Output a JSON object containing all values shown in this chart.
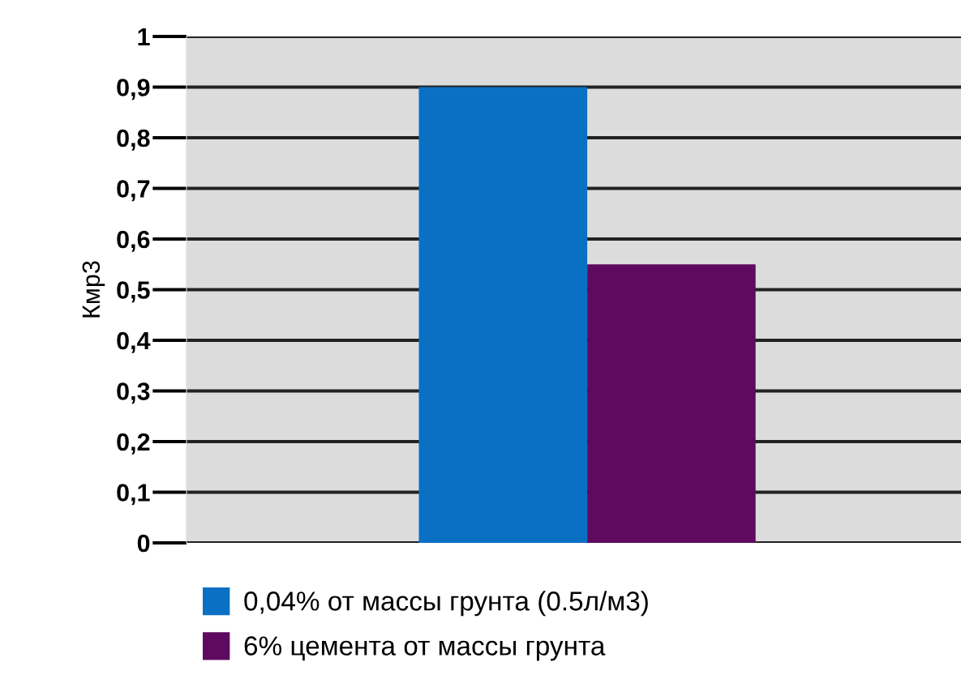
{
  "chart_data": {
    "type": "bar",
    "ylabel": "Кмр3",
    "categories": [
      null
    ],
    "series": [
      {
        "name": "0,04% от массы грунта (0.5л/м3)",
        "color": "#0a70c4",
        "values": [
          0.9
        ]
      },
      {
        "name": "6% цемента от массы грунта",
        "color": "#5e0a5e",
        "values": [
          0.55
        ]
      }
    ],
    "ylim": [
      0,
      1
    ],
    "yticks": [
      0,
      {
        "value": 0.1,
        "label": "0,1"
      },
      {
        "value": 0.2,
        "label": "0,2"
      },
      {
        "value": 0.3,
        "label": "0,3"
      },
      {
        "value": 0.4,
        "label": "0,4"
      },
      {
        "value": 0.5,
        "label": "0,5"
      },
      {
        "value": 0.6,
        "label": "0,6"
      },
      {
        "value": 0.7,
        "label": "0,7"
      },
      {
        "value": 0.8,
        "label": "0,8"
      },
      {
        "value": 0.9,
        "label": "0,9"
      },
      1
    ],
    "grid": "y",
    "legend": "bottom"
  }
}
